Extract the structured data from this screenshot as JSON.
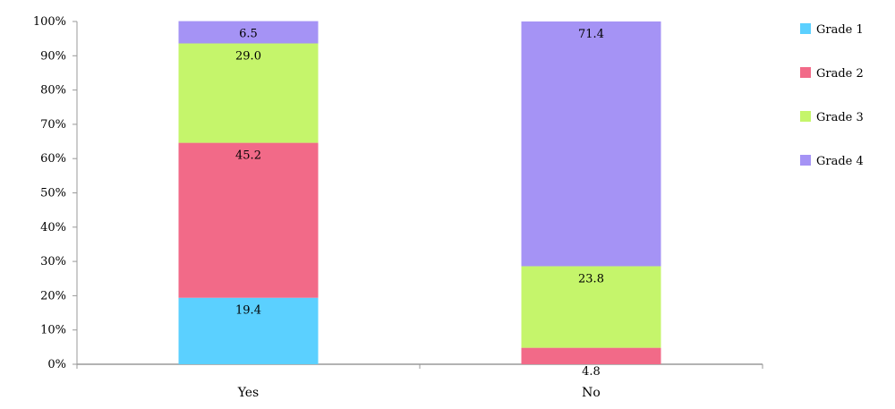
{
  "chart_data": {
    "type": "bar",
    "stacked": true,
    "categories": [
      "Yes",
      "No"
    ],
    "series": [
      {
        "name": "Grade 1",
        "color": "#5bd0ff",
        "values": [
          19.4,
          0
        ],
        "labels": [
          "19.4",
          ""
        ]
      },
      {
        "name": "Grade 2",
        "color": "#f26a88",
        "values": [
          45.2,
          4.8
        ],
        "labels": [
          "45.2",
          "4.8"
        ]
      },
      {
        "name": "Grade 3",
        "color": "#c5f56b",
        "values": [
          29.0,
          23.8
        ],
        "labels": [
          "29.0",
          "23.8"
        ]
      },
      {
        "name": "Grade 4",
        "color": "#a593f5",
        "values": [
          6.5,
          71.4
        ],
        "labels": [
          "6.5",
          "71.4"
        ]
      }
    ],
    "yticks": [
      "0%",
      "10%",
      "20%",
      "30%",
      "40%",
      "50%",
      "60%",
      "70%",
      "80%",
      "90%",
      "100%"
    ],
    "ylim": [
      0,
      100
    ],
    "xlabel": "",
    "ylabel": "",
    "legend_position": "right",
    "grid": false
  }
}
